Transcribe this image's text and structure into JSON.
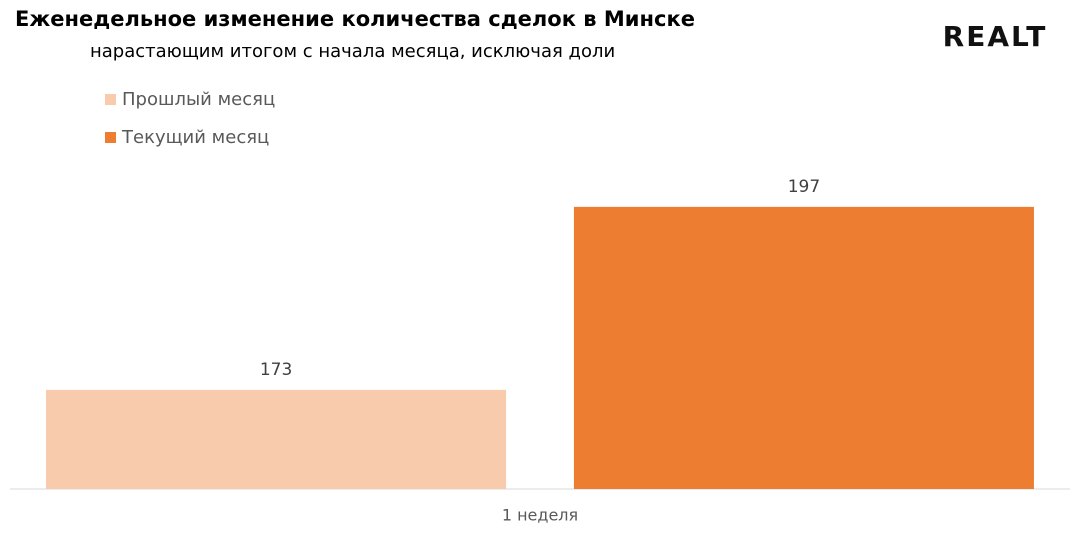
{
  "chart_data": {
    "type": "bar",
    "title": "Еженедельное изменение количества сделок в Минске",
    "subtitle": "нарастающим итогом с начала месяца, исключая доли",
    "logo": "REALT",
    "categories": [
      "1 неделя"
    ],
    "series": [
      {
        "name": "Прошлый месяц",
        "color": "#f8cbad",
        "values": [
          173
        ]
      },
      {
        "name": "Текущий месяц",
        "color": "#ed7d31",
        "values": [
          197
        ]
      }
    ],
    "ylim": [
      160,
      200
    ],
    "legend": "top-left"
  }
}
